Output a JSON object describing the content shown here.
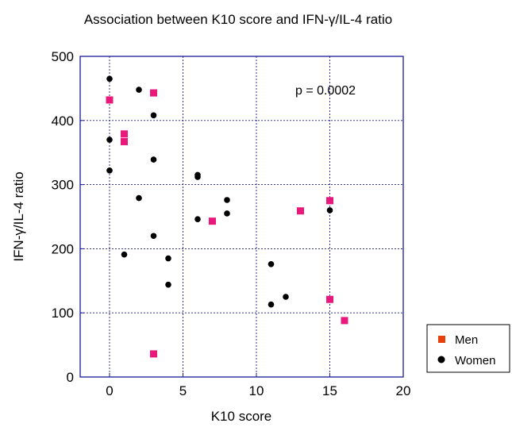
{
  "chart_data": {
    "type": "scatter",
    "title": "Association between K10 score and IFN-γ/IL-4 ratio",
    "xlabel": "K10 score",
    "ylabel": "IFN-γ/IL-4 ratio",
    "xlim": [
      -2,
      20
    ],
    "ylim": [
      0,
      500
    ],
    "xticks": [
      0,
      5,
      10,
      15,
      20
    ],
    "yticks": [
      0,
      100,
      200,
      300,
      400,
      500
    ],
    "grid": true,
    "legend_position": "bottom-right, outside plot",
    "annotation": "p = 0.0002",
    "series": [
      {
        "name": "Men",
        "marker": "square",
        "color": "#e8197a",
        "legend_color": "#e8400a",
        "points": [
          [
            0,
            432
          ],
          [
            1,
            379
          ],
          [
            1,
            367
          ],
          [
            3,
            443
          ],
          [
            3,
            36
          ],
          [
            7,
            243
          ],
          [
            13,
            259
          ],
          [
            15,
            275
          ],
          [
            15,
            121
          ],
          [
            16,
            88
          ]
        ]
      },
      {
        "name": "Women",
        "marker": "circle",
        "color": "#000000",
        "legend_color": "#000000",
        "points": [
          [
            0,
            465
          ],
          [
            0,
            370
          ],
          [
            0,
            322
          ],
          [
            1,
            191
          ],
          [
            2,
            448
          ],
          [
            2,
            279
          ],
          [
            3,
            408
          ],
          [
            3,
            339
          ],
          [
            3,
            220
          ],
          [
            4,
            185
          ],
          [
            4,
            144
          ],
          [
            6,
            315
          ],
          [
            6,
            312
          ],
          [
            6,
            246
          ],
          [
            8,
            276
          ],
          [
            8,
            255
          ],
          [
            11,
            176
          ],
          [
            11,
            113
          ],
          [
            12,
            125
          ],
          [
            15,
            260
          ]
        ]
      }
    ]
  }
}
